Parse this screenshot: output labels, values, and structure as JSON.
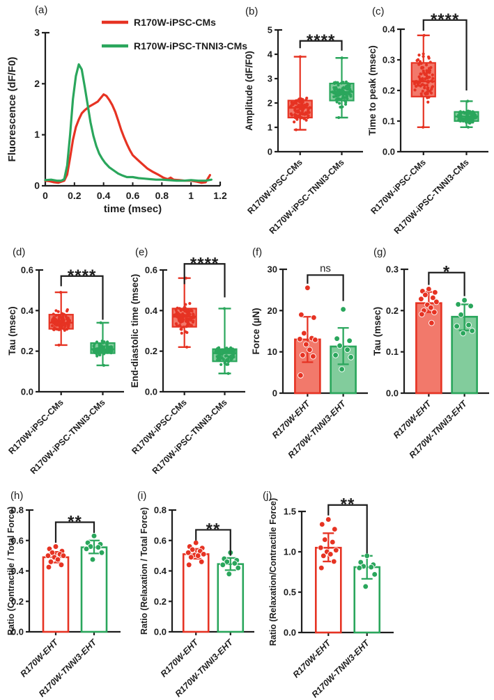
{
  "colors": {
    "red": "#e63323",
    "red_fill": "#f2796b",
    "green": "#2aa65c",
    "green_fill": "#82cc9c",
    "axis": "#1d1d1d",
    "background": "#ffffff"
  },
  "chart_data": [
    {
      "id": "a",
      "panel_label": "(a)",
      "type": "line",
      "xlabel": "time (msec)",
      "ylabel": "Fluorescence (dF/F0)",
      "xlim": [
        0,
        1.2
      ],
      "ylim": [
        0,
        3
      ],
      "xticks": [
        0,
        0.2,
        0.4,
        0.6,
        0.8,
        1,
        1.2
      ],
      "xtick_labels": [
        "0",
        "0.2",
        "0.4",
        "0.6",
        "0.8",
        "1",
        "1.2"
      ],
      "yticks": [
        0,
        1,
        2,
        3
      ],
      "ytick_labels": [
        "0",
        "1",
        "2",
        "3"
      ],
      "legend": [
        {
          "label": "R170W-iPSC-CMs",
          "color": "red"
        },
        {
          "label": "R170W-iPSC-TNNI3-CMs",
          "color": "green"
        }
      ],
      "series": [
        {
          "name": "R170W-iPSC-CMs",
          "color": "red",
          "points": [
            [
              0,
              0.1
            ],
            [
              0.03,
              0.09
            ],
            [
              0.06,
              0.07
            ],
            [
              0.09,
              0.06
            ],
            [
              0.11,
              0.08
            ],
            [
              0.13,
              0.1
            ],
            [
              0.15,
              0.22
            ],
            [
              0.17,
              0.55
            ],
            [
              0.19,
              0.9
            ],
            [
              0.21,
              1.15
            ],
            [
              0.23,
              1.3
            ],
            [
              0.25,
              1.42
            ],
            [
              0.27,
              1.48
            ],
            [
              0.3,
              1.55
            ],
            [
              0.33,
              1.6
            ],
            [
              0.36,
              1.65
            ],
            [
              0.38,
              1.72
            ],
            [
              0.4,
              1.79
            ],
            [
              0.42,
              1.76
            ],
            [
              0.44,
              1.68
            ],
            [
              0.46,
              1.58
            ],
            [
              0.48,
              1.45
            ],
            [
              0.5,
              1.28
            ],
            [
              0.52,
              1.1
            ],
            [
              0.54,
              0.95
            ],
            [
              0.56,
              0.82
            ],
            [
              0.58,
              0.7
            ],
            [
              0.6,
              0.6
            ],
            [
              0.63,
              0.52
            ],
            [
              0.66,
              0.44
            ],
            [
              0.7,
              0.34
            ],
            [
              0.74,
              0.27
            ],
            [
              0.78,
              0.21
            ],
            [
              0.81,
              0.16
            ],
            [
              0.84,
              0.13
            ],
            [
              0.86,
              0.16
            ],
            [
              0.88,
              0.12
            ],
            [
              0.92,
              0.11
            ],
            [
              0.96,
              0.1
            ],
            [
              1.0,
              0.1
            ],
            [
              1.04,
              0.08
            ],
            [
              1.07,
              0.06
            ],
            [
              1.1,
              0.07
            ],
            [
              1.13,
              0.21
            ]
          ]
        },
        {
          "name": "R170W-iPSC-TNNI3-CMs",
          "color": "green",
          "points": [
            [
              0,
              0.11
            ],
            [
              0.04,
              0.12
            ],
            [
              0.08,
              0.1
            ],
            [
              0.11,
              0.1
            ],
            [
              0.13,
              0.13
            ],
            [
              0.15,
              0.4
            ],
            [
              0.17,
              1.0
            ],
            [
              0.19,
              1.7
            ],
            [
              0.21,
              2.15
            ],
            [
              0.23,
              2.38
            ],
            [
              0.25,
              2.28
            ],
            [
              0.27,
              1.95
            ],
            [
              0.29,
              1.6
            ],
            [
              0.31,
              1.25
            ],
            [
              0.33,
              0.98
            ],
            [
              0.35,
              0.78
            ],
            [
              0.37,
              0.63
            ],
            [
              0.39,
              0.53
            ],
            [
              0.41,
              0.45
            ],
            [
              0.44,
              0.36
            ],
            [
              0.47,
              0.3
            ],
            [
              0.5,
              0.24
            ],
            [
              0.53,
              0.2
            ],
            [
              0.56,
              0.17
            ],
            [
              0.6,
              0.17
            ],
            [
              0.64,
              0.15
            ],
            [
              0.68,
              0.14
            ],
            [
              0.72,
              0.13
            ],
            [
              0.76,
              0.12
            ],
            [
              0.8,
              0.12
            ],
            [
              0.85,
              0.11
            ],
            [
              0.9,
              0.1
            ],
            [
              0.95,
              0.1
            ],
            [
              1.0,
              0.11
            ],
            [
              1.05,
              0.1
            ],
            [
              1.1,
              0.1
            ],
            [
              1.14,
              0.12
            ]
          ]
        }
      ]
    },
    {
      "id": "b",
      "panel_label": "(b)",
      "type": "box",
      "ylabel": "Amplitude (dF/F0)",
      "ylim": [
        0,
        5
      ],
      "yticks": [
        0,
        1,
        2,
        3,
        4,
        5
      ],
      "ytick_labels": [
        "0",
        "1",
        "2",
        "3",
        "4",
        "5"
      ],
      "categories": [
        "R170W-iPSC-CMs",
        "R170W-iPSC-TNNI3-CMs"
      ],
      "cat_italic": false,
      "groups": [
        {
          "name": "R170W-iPSC-CMs",
          "color": "red",
          "n_points": 95,
          "box": {
            "min": 0.9,
            "q1": 1.4,
            "median": 1.8,
            "q3": 2.1,
            "max": 3.9
          }
        },
        {
          "name": "R170W-iPSC-TNNI3-CMs",
          "color": "green",
          "n_points": 88,
          "box": {
            "min": 1.4,
            "q1": 2.1,
            "median": 2.45,
            "q3": 2.8,
            "max": 3.85
          }
        }
      ],
      "sig": {
        "label": "****",
        "y": 4.55,
        "left_to": 4.25,
        "right_to": 4.15,
        "size": 24,
        "bold": true
      }
    },
    {
      "id": "c",
      "panel_label": "(c)",
      "type": "box",
      "ylabel": "Time to peak (msec)",
      "ylim": [
        0,
        0.4
      ],
      "yticks": [
        0,
        0.1,
        0.2,
        0.3,
        0.4
      ],
      "ytick_labels": [
        "0.0",
        "0.1",
        "0.2",
        "0.3",
        "0.4"
      ],
      "categories": [
        "R170W-iPSC-CMs",
        "R170W-iPSC-TNNI3-CMs"
      ],
      "cat_italic": false,
      "groups": [
        {
          "name": "R170W-iPSC-CMs",
          "color": "red",
          "n_points": 88,
          "box": {
            "min": 0.08,
            "q1": 0.18,
            "median": 0.23,
            "q3": 0.29,
            "max": 0.38
          }
        },
        {
          "name": "R170W-iPSC-TNNI3-CMs",
          "color": "green",
          "n_points": 80,
          "box": {
            "min": 0.08,
            "q1": 0.1,
            "median": 0.115,
            "q3": 0.13,
            "max": 0.165
          }
        }
      ],
      "sig": {
        "label": "****",
        "y": 0.43,
        "left_to": 0.395,
        "right_to": 0.2,
        "size": 24,
        "bold": true
      }
    },
    {
      "id": "d",
      "panel_label": "(d)",
      "type": "box",
      "ylabel": "Tau (msec)",
      "ylim": [
        0,
        0.6
      ],
      "yticks": [
        0,
        0.2,
        0.4,
        0.6
      ],
      "ytick_labels": [
        "0.0",
        "0.2",
        "0.4",
        "0.6"
      ],
      "categories": [
        "R170W-iPSC-CMs",
        "R170W-iPSC-TNNI3-CMs"
      ],
      "cat_italic": false,
      "groups": [
        {
          "name": "R170W-iPSC-CMs",
          "color": "red",
          "n_points": 110,
          "box": {
            "min": 0.23,
            "q1": 0.31,
            "median": 0.34,
            "q3": 0.38,
            "max": 0.49
          }
        },
        {
          "name": "R170W-iPSC-TNNI3-CMs",
          "color": "green",
          "n_points": 95,
          "box": {
            "min": 0.13,
            "q1": 0.19,
            "median": 0.21,
            "q3": 0.24,
            "max": 0.34
          }
        }
      ],
      "sig": {
        "label": "****",
        "y": 0.57,
        "left_to": 0.52,
        "right_to": 0.355,
        "size": 24,
        "bold": true
      }
    },
    {
      "id": "e",
      "panel_label": "(e)",
      "type": "box",
      "ylabel": "End-diastolic time (msec)",
      "ylim": [
        0,
        0.6
      ],
      "yticks": [
        0,
        0.2,
        0.4,
        0.6
      ],
      "ytick_labels": [
        "0.0",
        "0.2",
        "0.4",
        "0.6"
      ],
      "categories": [
        "R170W-iPSC-CMs",
        "R170W-iPSC-TNNI3-CMs"
      ],
      "cat_italic": false,
      "groups": [
        {
          "name": "R170W-iPSC-CMs",
          "color": "red",
          "n_points": 100,
          "box": {
            "min": 0.22,
            "q1": 0.32,
            "median": 0.37,
            "q3": 0.41,
            "max": 0.56
          }
        },
        {
          "name": "R170W-iPSC-TNNI3-CMs",
          "color": "green",
          "n_points": 92,
          "box": {
            "min": 0.09,
            "q1": 0.15,
            "median": 0.19,
            "q3": 0.21,
            "max": 0.41
          }
        }
      ],
      "sig": {
        "label": "****",
        "y": 0.63,
        "left_to": 0.53,
        "right_to": 0.465,
        "size": 24,
        "bold": true
      }
    },
    {
      "id": "f",
      "panel_label": "(f)",
      "type": "bar",
      "bar_style": "tint",
      "ylabel": "Force (µN)",
      "ylim": [
        0,
        30
      ],
      "yticks": [
        0,
        10,
        20,
        30
      ],
      "ytick_labels": [
        "0",
        "10",
        "20",
        "30"
      ],
      "categories": [
        "R170W-EHT",
        "R170W-TNNI3-EHT"
      ],
      "cat_italic": true,
      "groups": [
        {
          "name": "R170W-EHT",
          "color": "red",
          "mean": 13.0,
          "err_low": 7.5,
          "err_high": 18.5,
          "points": [
            25.5,
            19.0,
            18.3,
            14.5,
            13.3,
            13.1,
            12.9,
            11.8,
            10.5,
            9.2,
            8.9,
            4.3
          ]
        },
        {
          "name": "R170W-TNNI3-EHT",
          "color": "green",
          "mean": 11.3,
          "err_low": 7.0,
          "err_high": 15.8,
          "points": [
            20.3,
            13.2,
            12.7,
            11.5,
            10.5,
            9.2,
            8.7,
            5.8
          ]
        }
      ],
      "sig": {
        "label": "ns",
        "y": 28.6,
        "left_to": 26.5,
        "right_to": 22.3,
        "size": 15,
        "bold": false
      }
    },
    {
      "id": "g",
      "panel_label": "(g)",
      "type": "bar",
      "bar_style": "tint",
      "ylabel": "Tau (msec)",
      "ylim": [
        0,
        0.3
      ],
      "yticks": [
        0,
        0.1,
        0.2,
        0.3
      ],
      "ytick_labels": [
        "0.0",
        "0.1",
        "0.2",
        "0.3"
      ],
      "categories": [
        "R170W-EHT",
        "R170W-TNNI3-EHT"
      ],
      "cat_italic": true,
      "groups": [
        {
          "name": "R170W-EHT",
          "color": "red",
          "mean": 0.218,
          "err_low": 0.196,
          "err_high": 0.245,
          "points": [
            0.252,
            0.247,
            0.244,
            0.238,
            0.231,
            0.228,
            0.221,
            0.214,
            0.207,
            0.2,
            0.196,
            0.191,
            0.17
          ]
        },
        {
          "name": "R170W-TNNI3-EHT",
          "color": "green",
          "mean": 0.185,
          "err_low": 0.152,
          "err_high": 0.215,
          "points": [
            0.225,
            0.215,
            0.211,
            0.19,
            0.165,
            0.162,
            0.151,
            0.145
          ]
        }
      ],
      "sig": {
        "label": "*",
        "y": 0.292,
        "left_to": 0.262,
        "right_to": 0.235,
        "size": 24,
        "bold": true
      }
    },
    {
      "id": "h",
      "panel_label": "(h)",
      "type": "bar",
      "bar_style": "open",
      "ylabel": "Ratio (Contractile / Total Force)",
      "ylim": [
        0,
        0.8
      ],
      "yticks": [
        0,
        0.2,
        0.4,
        0.6,
        0.8
      ],
      "ytick_labels": [
        "0.0",
        "0.2",
        "0.4",
        "0.6",
        "0.8"
      ],
      "categories": [
        "R170W-EHT",
        "R170W-TNNI3-EHT"
      ],
      "cat_italic": true,
      "groups": [
        {
          "name": "R170W-EHT",
          "color": "red",
          "mean": 0.49,
          "err_low": 0.455,
          "err_high": 0.525,
          "points": [
            0.56,
            0.545,
            0.53,
            0.52,
            0.51,
            0.5,
            0.5,
            0.49,
            0.475,
            0.46,
            0.44,
            0.425
          ]
        },
        {
          "name": "R170W-TNNI3-EHT",
          "color": "green",
          "mean": 0.555,
          "err_low": 0.515,
          "err_high": 0.6,
          "points": [
            0.63,
            0.585,
            0.575,
            0.56,
            0.555,
            0.545,
            0.52,
            0.475
          ]
        }
      ],
      "sig": {
        "label": "**",
        "y": 0.72,
        "left_to": 0.585,
        "right_to": 0.65,
        "size": 24,
        "bold": true
      }
    },
    {
      "id": "i",
      "panel_label": "(i)",
      "type": "bar",
      "bar_style": "open",
      "ylabel": "Ratio (Relaxation / Total Force)",
      "ylim": [
        0,
        0.8
      ],
      "yticks": [
        0,
        0.2,
        0.4,
        0.6,
        0.8
      ],
      "ytick_labels": [
        "0.0",
        "0.2",
        "0.4",
        "0.6",
        "0.8"
      ],
      "categories": [
        "R170W-EHT",
        "R170W-TNNI3-EHT"
      ],
      "cat_italic": true,
      "groups": [
        {
          "name": "R170W-EHT",
          "color": "red",
          "mean": 0.51,
          "err_low": 0.48,
          "err_high": 0.545,
          "points": [
            0.585,
            0.56,
            0.55,
            0.54,
            0.53,
            0.52,
            0.51,
            0.505,
            0.5,
            0.49,
            0.46,
            0.44
          ]
        },
        {
          "name": "R170W-TNNI3-EHT",
          "color": "green",
          "mean": 0.445,
          "err_low": 0.405,
          "err_high": 0.485,
          "points": [
            0.52,
            0.48,
            0.47,
            0.46,
            0.45,
            0.44,
            0.42,
            0.38
          ]
        }
      ],
      "sig": {
        "label": "**",
        "y": 0.67,
        "left_to": 0.6,
        "right_to": 0.5,
        "size": 24,
        "bold": true
      }
    },
    {
      "id": "j",
      "panel_label": "(j)",
      "type": "bar",
      "bar_style": "open",
      "ylabel": "Ratio (Relaxation/Contractile Force)",
      "ylim": [
        0,
        1.5
      ],
      "yticks": [
        0,
        0.5,
        1,
        1.5
      ],
      "ytick_labels": [
        "0.0",
        "0.5",
        "1.0",
        "1.5"
      ],
      "categories": [
        "R170W-EHT",
        "R170W-TNNI3-EHT"
      ],
      "cat_italic": true,
      "groups": [
        {
          "name": "R170W-EHT",
          "color": "red",
          "mean": 1.05,
          "err_low": 0.88,
          "err_high": 1.23,
          "points": [
            1.4,
            1.34,
            1.28,
            1.15,
            1.12,
            1.05,
            1.02,
            1.0,
            0.97,
            0.95,
            0.88,
            0.8
          ]
        },
        {
          "name": "R170W-TNNI3-EHT",
          "color": "green",
          "mean": 0.81,
          "err_low": 0.665,
          "err_high": 0.95,
          "points": [
            0.95,
            0.87,
            0.84,
            0.82,
            0.81,
            0.8,
            0.72,
            0.57
          ]
        }
      ],
      "sig": {
        "label": "**",
        "y": 1.58,
        "left_to": 1.45,
        "right_to": 0.98,
        "size": 24,
        "bold": true
      }
    }
  ]
}
